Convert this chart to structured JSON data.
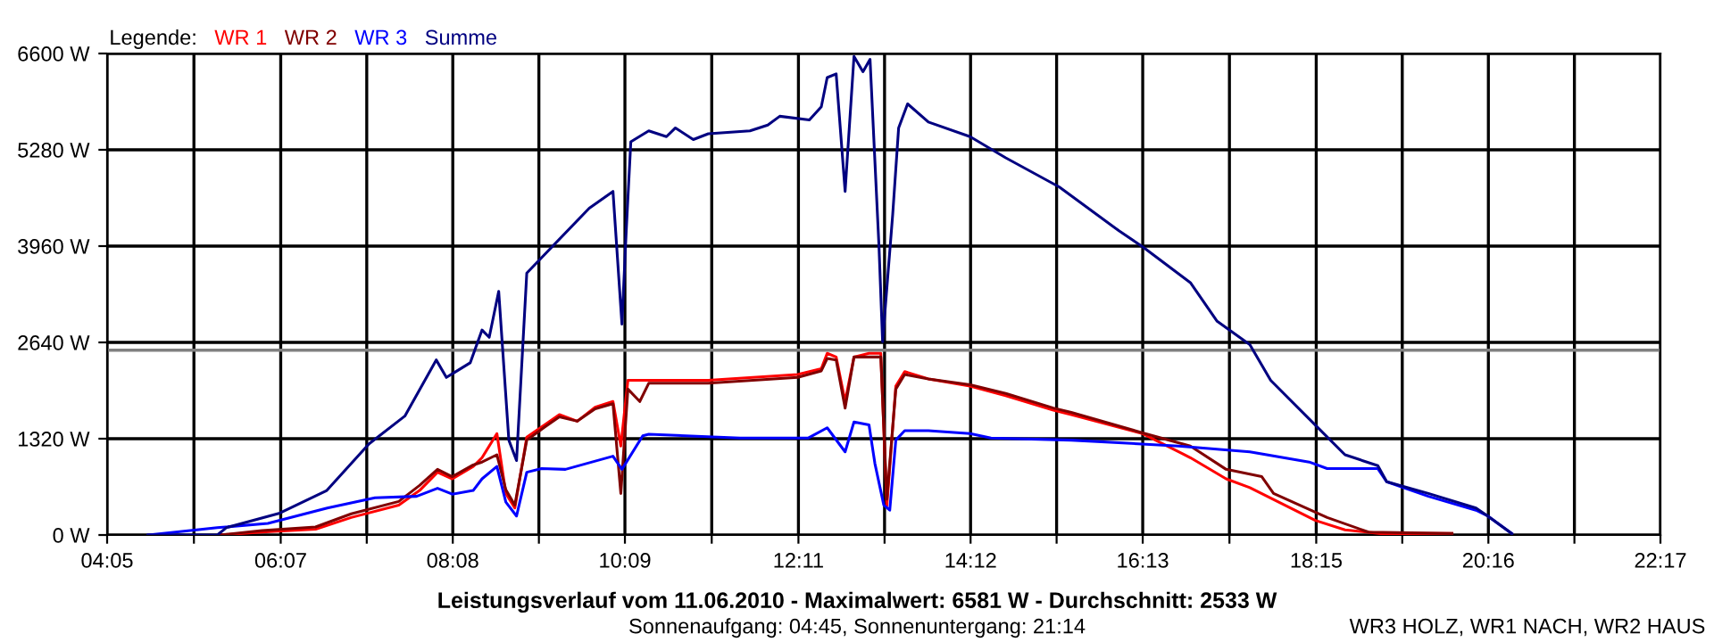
{
  "chart_data": {
    "type": "line",
    "title": "Leistungsverlauf vom 11.06.2010 - Maximalwert: 6581 W - Durchschnitt: 2533 W",
    "subtitle": "Sonnenaufgang: 04:45, Sonnenuntergang: 21:14",
    "annotations": [
      "WR3 HOLZ, WR1 NACH, WR2 HAUS"
    ],
    "legend_title": "Legende:",
    "legend": "top left",
    "grid": true,
    "marker": "none",
    "line_style": "solid",
    "xlim": [
      4.083,
      22.283
    ],
    "xticks": [
      {
        "value": 4.083,
        "label": "04:05"
      },
      {
        "value": 5.1,
        "label": null
      },
      {
        "value": 6.117,
        "label": "06:07"
      },
      {
        "value": 7.125,
        "label": null
      },
      {
        "value": 8.133,
        "label": "08:08"
      },
      {
        "value": 9.142,
        "label": null
      },
      {
        "value": 10.15,
        "label": "10:09"
      },
      {
        "value": 11.167,
        "label": null
      },
      {
        "value": 12.183,
        "label": "12:11"
      },
      {
        "value": 13.192,
        "label": null
      },
      {
        "value": 14.2,
        "label": "14:12"
      },
      {
        "value": 15.208,
        "label": null
      },
      {
        "value": 16.217,
        "label": "16:13"
      },
      {
        "value": 17.233,
        "label": null
      },
      {
        "value": 18.25,
        "label": "18:15"
      },
      {
        "value": 19.258,
        "label": null
      },
      {
        "value": 20.267,
        "label": "20:16"
      },
      {
        "value": 21.275,
        "label": null
      },
      {
        "value": 22.283,
        "label": "22:17"
      }
    ],
    "ylim": [
      0,
      6600
    ],
    "yticks": [
      {
        "value": 0,
        "label": "0 W"
      },
      {
        "value": 1320,
        "label": "1320 W"
      },
      {
        "value": 2640,
        "label": "2640 W"
      },
      {
        "value": 3960,
        "label": "3960 W"
      },
      {
        "value": 5280,
        "label": "5280 W"
      },
      {
        "value": 6600,
        "label": "6600 W"
      }
    ],
    "ref_lines": [
      {
        "axis": "y",
        "value": 2533,
        "color": "#808080"
      }
    ],
    "series": [
      {
        "name": "WR 1",
        "color": "#ff0000",
        "x": [
          5.401,
          5.897,
          6.525,
          6.943,
          7.5,
          7.744,
          7.954,
          8.127,
          8.372,
          8.476,
          8.65,
          8.755,
          8.86,
          9.0,
          9.209,
          9.382,
          9.592,
          9.801,
          10.01,
          10.102,
          10.185,
          10.429,
          11.127,
          12.173,
          12.451,
          12.52,
          12.625,
          12.73,
          12.834,
          13.01,
          13.148,
          13.219,
          13.324,
          13.428,
          13.706,
          14.194,
          14.612,
          15.171,
          15.38,
          16.216,
          16.775,
          17.194,
          17.472,
          18.239,
          18.587,
          19.004,
          19.841
        ],
        "values": [
          0,
          40,
          80,
          240,
          410,
          610,
          860,
          770,
          940,
          1060,
          1390,
          570,
          370,
          1340,
          1510,
          1650,
          1560,
          1750,
          1830,
          1220,
          2120,
          2120,
          2120,
          2200,
          2280,
          2490,
          2440,
          1830,
          2440,
          2490,
          2490,
          400,
          2040,
          2240,
          2140,
          2040,
          1910,
          1710,
          1650,
          1390,
          1060,
          770,
          650,
          200,
          70,
          20,
          20
        ]
      },
      {
        "name": "WR 2",
        "color": "#800000",
        "x": [
          5.401,
          5.897,
          6.525,
          6.943,
          7.5,
          7.744,
          7.954,
          8.127,
          8.372,
          8.476,
          8.65,
          8.755,
          8.86,
          9.0,
          9.209,
          9.382,
          9.592,
          9.801,
          10.01,
          10.102,
          10.185,
          10.324,
          10.429,
          11.127,
          12.173,
          12.451,
          12.52,
          12.625,
          12.73,
          12.834,
          13.01,
          13.148,
          13.219,
          13.324,
          13.428,
          13.706,
          14.194,
          14.612,
          15.171,
          15.38,
          16.216,
          16.775,
          17.194,
          17.612,
          17.75,
          18.378,
          18.863,
          19.841
        ],
        "values": [
          0,
          60,
          110,
          290,
          460,
          680,
          900,
          800,
          960,
          1000,
          1100,
          620,
          410,
          1300,
          1480,
          1620,
          1560,
          1730,
          1800,
          570,
          2000,
          1830,
          2080,
          2080,
          2160,
          2250,
          2420,
          2400,
          1740,
          2440,
          2440,
          2440,
          490,
          2000,
          2200,
          2140,
          2060,
          1940,
          1740,
          1680,
          1400,
          1220,
          900,
          800,
          570,
          240,
          40,
          20
        ]
      },
      {
        "name": "WR 3",
        "color": "#0000ff",
        "x": [
          4.565,
          5.374,
          5.966,
          6.663,
          7.221,
          7.709,
          7.954,
          8.127,
          8.372,
          8.476,
          8.65,
          8.755,
          8.88,
          9.0,
          9.173,
          9.453,
          10.01,
          10.115,
          10.359,
          10.429,
          11.5,
          12.3,
          12.52,
          12.73,
          12.834,
          13.01,
          13.079,
          13.183,
          13.253,
          13.324,
          13.428,
          13.706,
          14.194,
          14.439,
          15.38,
          16.636,
          17.472,
          18.168,
          18.378,
          18.972,
          19.076,
          19.564,
          20.122,
          20.26,
          20.541
        ],
        "values": [
          0,
          100,
          160,
          370,
          510,
          530,
          640,
          560,
          610,
          770,
          940,
          450,
          260,
          860,
          910,
          900,
          1080,
          900,
          1360,
          1380,
          1330,
          1330,
          1470,
          1140,
          1550,
          1510,
          980,
          410,
          340,
          1300,
          1430,
          1430,
          1390,
          1330,
          1300,
          1220,
          1140,
          1000,
          910,
          910,
          730,
          530,
          340,
          260,
          20
        ]
      },
      {
        "name": "Summe",
        "color": "#000080",
        "x": [
          4.565,
          5.374,
          5.479,
          6.106,
          6.657,
          7.152,
          7.571,
          7.939,
          8.058,
          8.337,
          8.476,
          8.56,
          8.671,
          8.79,
          8.88,
          9.0,
          9.732,
          10.01,
          10.115,
          10.165,
          10.219,
          10.429,
          10.637,
          10.742,
          10.951,
          11.127,
          11.615,
          11.824,
          11.964,
          12.311,
          12.451,
          12.52,
          12.625,
          12.73,
          12.834,
          12.939,
          13.022,
          13.127,
          13.169,
          13.288,
          13.357,
          13.462,
          13.706,
          14.194,
          14.612,
          15.24,
          15.938,
          16.216,
          16.775,
          17.089,
          17.472,
          17.716,
          18.168,
          18.587,
          18.972,
          19.076,
          19.564,
          20.122,
          20.26,
          20.541
        ],
        "values": [
          0,
          0,
          100,
          300,
          610,
          1250,
          1630,
          2400,
          2160,
          2360,
          2810,
          2710,
          3340,
          1300,
          1020,
          3590,
          4480,
          4710,
          2890,
          4160,
          5390,
          5540,
          5460,
          5580,
          5420,
          5500,
          5540,
          5620,
          5740,
          5690,
          5870,
          6270,
          6320,
          4710,
          6560,
          6350,
          6520,
          3950,
          2650,
          4400,
          5580,
          5910,
          5660,
          5460,
          5170,
          4770,
          4170,
          3950,
          3460,
          2930,
          2610,
          2120,
          1590,
          1100,
          950,
          730,
          570,
          370,
          260,
          20
        ]
      }
    ]
  }
}
